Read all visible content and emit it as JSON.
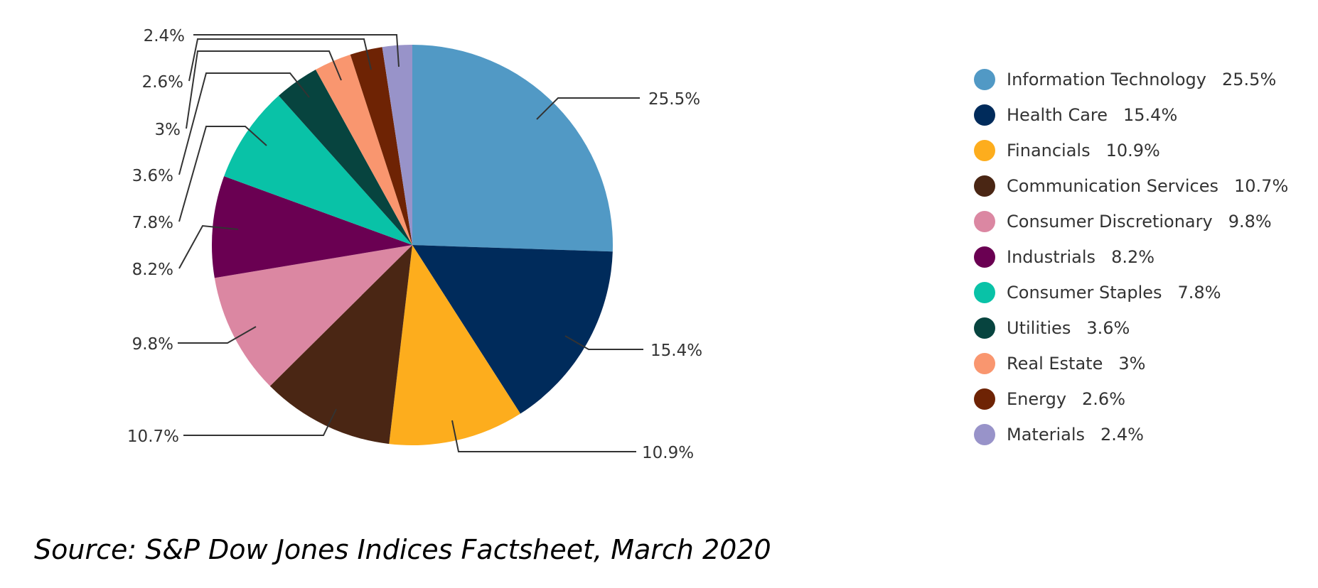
{
  "chart_data": {
    "type": "pie",
    "slices": [
      {
        "label": "Information Technology",
        "value": 25.5,
        "display": "25.5%",
        "color": "#5199C5"
      },
      {
        "label": "Health Care",
        "value": 15.4,
        "display": "15.4%",
        "color": "#002B5B"
      },
      {
        "label": "Financials",
        "value": 10.9,
        "display": "10.9%",
        "color": "#FDAD1D"
      },
      {
        "label": "Communication Services",
        "value": 10.7,
        "display": "10.7%",
        "color": "#4A2614"
      },
      {
        "label": "Consumer Discretionary",
        "value": 9.8,
        "display": "9.8%",
        "color": "#DB87A2"
      },
      {
        "label": "Industrials",
        "value": 8.2,
        "display": "8.2%",
        "color": "#6A0052"
      },
      {
        "label": "Consumer Staples",
        "value": 7.8,
        "display": "7.8%",
        "color": "#09C2A7"
      },
      {
        "label": "Utilities",
        "value": 3.6,
        "display": "3.6%",
        "color": "#07443F"
      },
      {
        "label": "Real Estate",
        "value": 3,
        "display": "3%",
        "color": "#F9966F"
      },
      {
        "label": "Energy",
        "value": 2.6,
        "display": "2.6%",
        "color": "#6E2304"
      },
      {
        "label": "Materials",
        "value": 2.4,
        "display": "2.4%",
        "color": "#9893C9"
      }
    ],
    "legend_position": "right",
    "direction": "clockwise",
    "start": "12 o'clock"
  },
  "source": "Source: S&P Dow Jones Indices Factsheet, March 2020"
}
